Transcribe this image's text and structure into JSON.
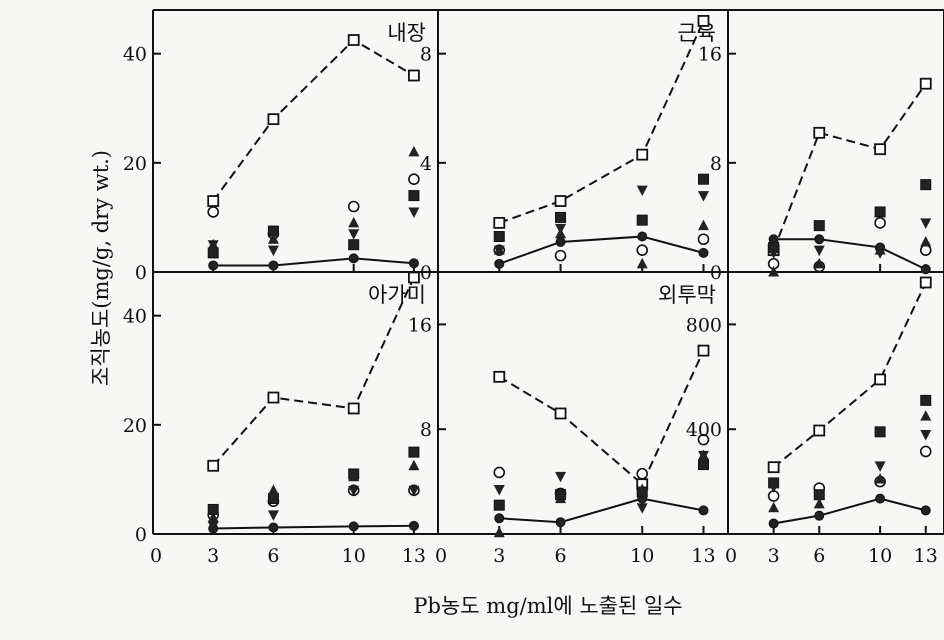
{
  "figure": {
    "ylabel": "조직농도(mg/g, dry wt.)",
    "xlabel": "Pb농도 mg/ml에 노출된 일수"
  },
  "chart_data": [
    {
      "type": "scatter",
      "title": "내장",
      "x_ticks": [
        "0",
        "3",
        "6",
        "10",
        "13"
      ],
      "y_ticks": [
        0,
        20,
        40
      ],
      "y_tick_labels": [
        "0",
        "20",
        "40"
      ],
      "ylim": [
        0,
        48
      ],
      "series": [
        {
          "marker": "open-square",
          "connect": "dashed",
          "points": [
            [
              3,
              13
            ],
            [
              6,
              28
            ],
            [
              10,
              42.5
            ],
            [
              13,
              36
            ]
          ]
        },
        {
          "marker": "filled-circle",
          "connect": "solid",
          "points": [
            [
              3,
              1.2
            ],
            [
              6,
              1.2
            ],
            [
              10,
              2.5
            ],
            [
              13,
              1.6
            ]
          ]
        },
        {
          "marker": "open-circle",
          "points": [
            [
              3,
              11
            ],
            [
              6,
              7
            ],
            [
              10,
              12
            ],
            [
              13,
              17
            ]
          ]
        },
        {
          "marker": "filled-square",
          "points": [
            [
              3,
              3.5
            ],
            [
              6,
              7.5
            ],
            [
              10,
              5
            ],
            [
              13,
              14
            ]
          ]
        },
        {
          "marker": "filled-triangle-up",
          "points": [
            [
              3,
              5
            ],
            [
              6,
              6
            ],
            [
              10,
              9
            ],
            [
              13,
              22
            ]
          ]
        },
        {
          "marker": "filled-triangle-down",
          "points": [
            [
              3,
              5
            ],
            [
              6,
              4
            ],
            [
              10,
              7
            ],
            [
              13,
              11
            ]
          ]
        }
      ]
    },
    {
      "type": "scatter",
      "title": "근육",
      "x_ticks": [
        "0",
        "3",
        "6",
        "10",
        "13"
      ],
      "y_ticks": [
        0,
        4,
        8
      ],
      "y_tick_labels": [
        "0",
        "4",
        "8"
      ],
      "ylim": [
        0,
        9.6
      ],
      "series": [
        {
          "marker": "open-square",
          "connect": "dashed",
          "points": [
            [
              3,
              1.8
            ],
            [
              6,
              2.6
            ],
            [
              10,
              4.3
            ],
            [
              13,
              9.2
            ]
          ]
        },
        {
          "marker": "filled-circle",
          "connect": "solid",
          "points": [
            [
              3,
              0.3
            ],
            [
              6,
              1.1
            ],
            [
              10,
              1.3
            ],
            [
              13,
              0.7
            ]
          ]
        },
        {
          "marker": "open-circle",
          "points": [
            [
              3,
              0.8
            ],
            [
              6,
              0.6
            ],
            [
              10,
              0.8
            ],
            [
              13,
              1.2
            ]
          ]
        },
        {
          "marker": "filled-square",
          "points": [
            [
              3,
              1.3
            ],
            [
              6,
              2.0
            ],
            [
              10,
              1.9
            ],
            [
              13,
              3.4
            ]
          ]
        },
        {
          "marker": "filled-triangle-up",
          "points": [
            [
              3,
              0.8
            ],
            [
              6,
              1.4
            ],
            [
              10,
              0.3
            ],
            [
              13,
              1.7
            ]
          ]
        },
        {
          "marker": "filled-triangle-down",
          "points": [
            [
              3,
              0.8
            ],
            [
              6,
              1.6
            ],
            [
              10,
              3.0
            ],
            [
              13,
              2.8
            ]
          ]
        }
      ]
    },
    {
      "type": "scatter",
      "title": "",
      "x_ticks": [
        "0",
        "3",
        "6",
        "10",
        "13"
      ],
      "y_ticks": [
        0,
        8,
        16
      ],
      "y_tick_labels": [
        "0",
        "8",
        "16"
      ],
      "ylim": [
        0,
        19.2
      ],
      "series": [
        {
          "marker": "open-square",
          "connect": "dashed",
          "points": [
            [
              3,
              1.6
            ],
            [
              6,
              10.2
            ],
            [
              10,
              9.0
            ],
            [
              13,
              13.8
            ]
          ]
        },
        {
          "marker": "filled-circle",
          "connect": "solid",
          "points": [
            [
              3,
              2.4
            ],
            [
              6,
              2.4
            ],
            [
              10,
              1.8
            ],
            [
              13,
              0.2
            ]
          ]
        },
        {
          "marker": "open-circle",
          "points": [
            [
              3,
              0.6
            ],
            [
              6,
              0.4
            ],
            [
              10,
              3.6
            ],
            [
              13,
              1.6
            ]
          ]
        },
        {
          "marker": "filled-square",
          "points": [
            [
              3,
              1.8
            ],
            [
              6,
              3.4
            ],
            [
              10,
              4.4
            ],
            [
              13,
              6.4
            ]
          ]
        },
        {
          "marker": "filled-triangle-up",
          "points": [
            [
              3,
              0
            ],
            [
              6,
              0.6
            ],
            [
              10,
              1.6
            ],
            [
              13,
              2.2
            ]
          ]
        },
        {
          "marker": "filled-triangle-down",
          "points": [
            [
              3,
              1.4
            ],
            [
              6,
              1.6
            ],
            [
              10,
              1.4
            ],
            [
              13,
              3.6
            ]
          ]
        }
      ]
    },
    {
      "type": "scatter",
      "title": "아가미",
      "x_ticks": [
        "0",
        "3",
        "6",
        "10",
        "13"
      ],
      "y_ticks": [
        0,
        20,
        40
      ],
      "y_tick_labels": [
        "0",
        "20",
        "40"
      ],
      "ylim": [
        0,
        48
      ],
      "series": [
        {
          "marker": "open-square",
          "connect": "dashed",
          "points": [
            [
              3,
              12.5
            ],
            [
              6,
              25
            ],
            [
              10,
              23
            ],
            [
              13,
              47
            ]
          ]
        },
        {
          "marker": "filled-circle",
          "connect": "solid",
          "points": [
            [
              3,
              1.0
            ],
            [
              6,
              1.2
            ],
            [
              10,
              1.4
            ],
            [
              13,
              1.5
            ]
          ]
        },
        {
          "marker": "open-circle",
          "points": [
            [
              3,
              3.5
            ],
            [
              6,
              6
            ],
            [
              10,
              8
            ],
            [
              13,
              8
            ]
          ]
        },
        {
          "marker": "filled-square",
          "points": [
            [
              3,
              4.5
            ],
            [
              6,
              6.5
            ],
            [
              10,
              11
            ],
            [
              13,
              15
            ]
          ]
        },
        {
          "marker": "filled-triangle-up",
          "points": [
            [
              3,
              3
            ],
            [
              6,
              8
            ],
            [
              10,
              10.5
            ],
            [
              13,
              12.5
            ]
          ]
        },
        {
          "marker": "filled-triangle-down",
          "points": [
            [
              3,
              1.5
            ],
            [
              6,
              3.5
            ],
            [
              10,
              8
            ],
            [
              13,
              8
            ]
          ]
        }
      ]
    },
    {
      "type": "scatter",
      "title": "외투막",
      "x_ticks": [
        "0",
        "3",
        "6",
        "10",
        "13"
      ],
      "y_ticks": [
        8,
        16
      ],
      "y_tick_labels": [
        "8",
        "16"
      ],
      "ylim": [
        0,
        20
      ],
      "series": [
        {
          "marker": "open-square",
          "connect": "dashed",
          "points": [
            [
              3,
              12
            ],
            [
              6,
              9.2
            ],
            [
              10,
              3.8
            ],
            [
              13,
              14
            ]
          ]
        },
        {
          "marker": "filled-circle",
          "connect": "solid",
          "points": [
            [
              3,
              1.2
            ],
            [
              6,
              0.9
            ],
            [
              10,
              2.7
            ],
            [
              13,
              1.8
            ]
          ]
        },
        {
          "marker": "open-circle",
          "points": [
            [
              3,
              4.7
            ],
            [
              6,
              3.1
            ],
            [
              10,
              4.6
            ],
            [
              13,
              7.2
            ]
          ]
        },
        {
          "marker": "filled-square",
          "points": [
            [
              3,
              2.2
            ],
            [
              6,
              3.0
            ],
            [
              10,
              3.2
            ],
            [
              13,
              5.3
            ]
          ]
        },
        {
          "marker": "filled-triangle-up",
          "points": [
            [
              3,
              0.1
            ],
            [
              6,
              2.7
            ],
            [
              10,
              3.4
            ],
            [
              13,
              6.0
            ]
          ]
        },
        {
          "marker": "filled-triangle-down",
          "points": [
            [
              3,
              3.4
            ],
            [
              6,
              4.4
            ],
            [
              10,
              2.0
            ],
            [
              13,
              6.0
            ]
          ]
        }
      ]
    },
    {
      "type": "scatter",
      "title": "",
      "x_ticks": [
        "0",
        "3",
        "6",
        "10",
        "13"
      ],
      "y_ticks": [
        400,
        800
      ],
      "y_tick_labels": [
        "400",
        "800"
      ],
      "ylim": [
        0,
        1000
      ],
      "series": [
        {
          "marker": "open-square",
          "connect": "dashed",
          "points": [
            [
              3,
              255
            ],
            [
              6,
              395
            ],
            [
              10,
              590
            ],
            [
              13,
              960
            ]
          ]
        },
        {
          "marker": "filled-circle",
          "connect": "solid",
          "points": [
            [
              3,
              40
            ],
            [
              6,
              70
            ],
            [
              10,
              135
            ],
            [
              13,
              90
            ]
          ]
        },
        {
          "marker": "open-circle",
          "points": [
            [
              3,
              145
            ],
            [
              6,
              175
            ],
            [
              10,
              200
            ],
            [
              13,
              315
            ]
          ]
        },
        {
          "marker": "filled-square",
          "points": [
            [
              3,
              195
            ],
            [
              6,
              150
            ],
            [
              10,
              390
            ],
            [
              13,
              510
            ]
          ]
        },
        {
          "marker": "filled-triangle-up",
          "points": [
            [
              3,
              100
            ],
            [
              6,
              115
            ],
            [
              10,
              210
            ],
            [
              13,
              450
            ]
          ]
        },
        {
          "marker": "filled-triangle-down",
          "points": [
            [
              3,
              180
            ],
            [
              6,
              140
            ],
            [
              10,
              260
            ],
            [
              13,
              380
            ]
          ]
        }
      ]
    }
  ]
}
